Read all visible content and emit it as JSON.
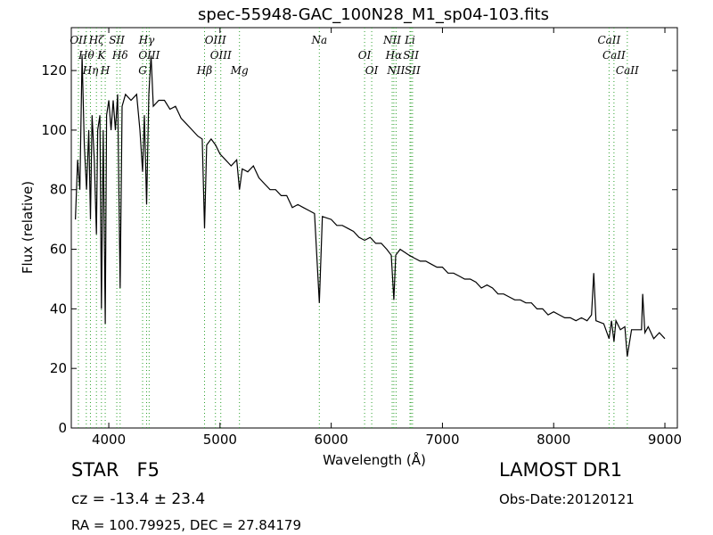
{
  "chart_data": {
    "type": "line",
    "title": "spec-55948-GAC_100N28_M1_sp04-103.fits",
    "xlabel": "Wavelength (Å)",
    "ylabel": "Flux (relative)",
    "color": "#000000",
    "line_color": "#2ca02c",
    "xlim": [
      3663,
      9112
    ],
    "ylim": [
      0,
      134.4
    ],
    "xticks": [
      4000,
      5000,
      6000,
      7000,
      8000,
      9000
    ],
    "yticks": [
      0,
      20,
      40,
      60,
      80,
      100,
      120
    ],
    "x": [
      3700,
      3720,
      3740,
      3760,
      3780,
      3800,
      3820,
      3835,
      3850,
      3870,
      3889,
      3900,
      3920,
      3934,
      3950,
      3968,
      3980,
      4000,
      4020,
      4040,
      4060,
      4080,
      4102,
      4120,
      4150,
      4200,
      4250,
      4280,
      4304,
      4320,
      4340,
      4360,
      4380,
      4400,
      4450,
      4500,
      4550,
      4600,
      4650,
      4700,
      4750,
      4800,
      4840,
      4861,
      4880,
      4920,
      4960,
      5000,
      5050,
      5100,
      5150,
      5175,
      5200,
      5250,
      5300,
      5350,
      5400,
      5450,
      5500,
      5550,
      5600,
      5650,
      5700,
      5750,
      5800,
      5850,
      5893,
      5920,
      6000,
      6050,
      6100,
      6150,
      6200,
      6250,
      6300,
      6350,
      6400,
      6450,
      6500,
      6540,
      6563,
      6580,
      6620,
      6660,
      6700,
      6750,
      6800,
      6850,
      6900,
      6950,
      7000,
      7050,
      7100,
      7150,
      7200,
      7250,
      7300,
      7350,
      7400,
      7450,
      7500,
      7550,
      7600,
      7650,
      7700,
      7750,
      7800,
      7850,
      7900,
      7950,
      8000,
      8050,
      8100,
      8150,
      8200,
      8250,
      8300,
      8340,
      8360,
      8380,
      8450,
      8498,
      8520,
      8542,
      8560,
      8600,
      8640,
      8662,
      8700,
      8750,
      8790,
      8800,
      8820,
      8850,
      8900,
      8950,
      9000
    ],
    "values": [
      70,
      90,
      80,
      125,
      95,
      80,
      100,
      70,
      105,
      90,
      65,
      100,
      105,
      40,
      100,
      35,
      105,
      110,
      100,
      110,
      100,
      112,
      47,
      108,
      112,
      110,
      112,
      100,
      86,
      105,
      75,
      112,
      125,
      108,
      110,
      110,
      107,
      108,
      104,
      102,
      100,
      98,
      97,
      67,
      95,
      97,
      95,
      92,
      90,
      88,
      90,
      80,
      87,
      86,
      88,
      84,
      82,
      80,
      80,
      78,
      78,
      74,
      75,
      74,
      73,
      72,
      42,
      71,
      70,
      68,
      68,
      67,
      66,
      64,
      63,
      64,
      62,
      62,
      60,
      58,
      43,
      58,
      60,
      59,
      58,
      57,
      56,
      56,
      55,
      54,
      54,
      52,
      52,
      51,
      50,
      50,
      49,
      47,
      48,
      47,
      45,
      45,
      44,
      43,
      43,
      42,
      42,
      40,
      40,
      38,
      39,
      38,
      37,
      37,
      36,
      37,
      36,
      38,
      52,
      36,
      35,
      30,
      36,
      29,
      36,
      33,
      34,
      24,
      33,
      33,
      33,
      45,
      32,
      34,
      30,
      32,
      30
    ],
    "lines": [
      {
        "label": "OII",
        "x": 3727
      },
      {
        "label": "Hθ",
        "x": 3798
      },
      {
        "label": "Hη",
        "x": 3835
      },
      {
        "label": "Hζ",
        "x": 3889
      },
      {
        "label": "K",
        "x": 3934
      },
      {
        "label": "H",
        "x": 3968
      },
      {
        "label": "SII",
        "x": 4072
      },
      {
        "label": "Hδ",
        "x": 4102
      },
      {
        "label": "G",
        "x": 4304
      },
      {
        "label": "Hγ",
        "x": 4340
      },
      {
        "label": "OIII",
        "x": 4363
      },
      {
        "label": "Hβ",
        "x": 4861
      },
      {
        "label": "OIII",
        "x": 4959
      },
      {
        "label": "OIII",
        "x": 5007
      },
      {
        "label": "Mg",
        "x": 5175
      },
      {
        "label": "Na",
        "x": 5893
      },
      {
        "label": "OI",
        "x": 6300
      },
      {
        "label": "OI",
        "x": 6364
      },
      {
        "label": "NII",
        "x": 6548
      },
      {
        "label": "Hα",
        "x": 6563
      },
      {
        "label": "NII",
        "x": 6583
      },
      {
        "label": "Li",
        "x": 6708
      },
      {
        "label": "SII",
        "x": 6717
      },
      {
        "label": "SII",
        "x": 6731
      },
      {
        "label": "CaII",
        "x": 8498
      },
      {
        "label": "CaII",
        "x": 8542
      },
      {
        "label": "CaII",
        "x": 8662
      }
    ]
  },
  "info": {
    "class": "STAR   F5",
    "cz": "cz = -13.4 ± 23.4",
    "coords": "RA = 100.79925, DEC = 27.84179",
    "survey": "LAMOST DR1",
    "date": "Obs-Date:20120121"
  }
}
